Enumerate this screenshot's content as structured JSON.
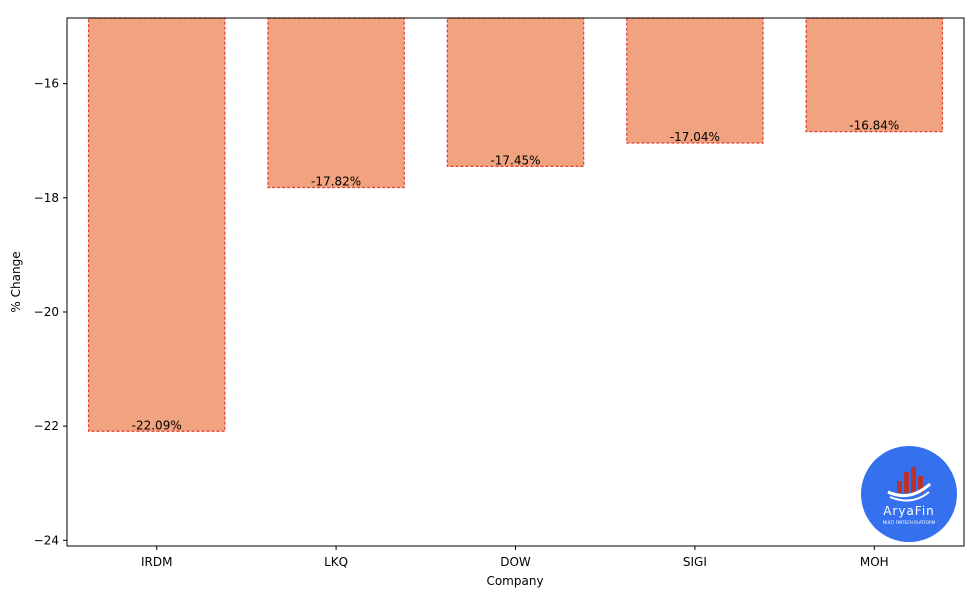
{
  "chart_data": {
    "type": "bar",
    "title": "",
    "xlabel": "Company",
    "ylabel": "% Change",
    "categories": [
      "IRDM",
      "LKQ",
      "DOW",
      "SIGI",
      "MOH"
    ],
    "values": [
      -22.09,
      -17.82,
      -17.45,
      -17.04,
      -16.84
    ],
    "data_labels": [
      "-22.09%",
      "-17.82%",
      "-17.45%",
      "-17.04%",
      "-16.84%"
    ],
    "ylim": [
      -24.1,
      -14.85
    ],
    "yticks": [
      -16,
      -18,
      -20,
      -22,
      -24
    ],
    "ytick_labels": [
      "−16",
      "−18",
      "−20",
      "−22",
      "−24"
    ],
    "grid": false,
    "bar_fill": "#f1a37f",
    "bar_edge": "#e03c31"
  },
  "logo": {
    "name": "AryaFin",
    "tagline": "MULTI FINTECH PLATFORM",
    "background": "#3570ee"
  }
}
